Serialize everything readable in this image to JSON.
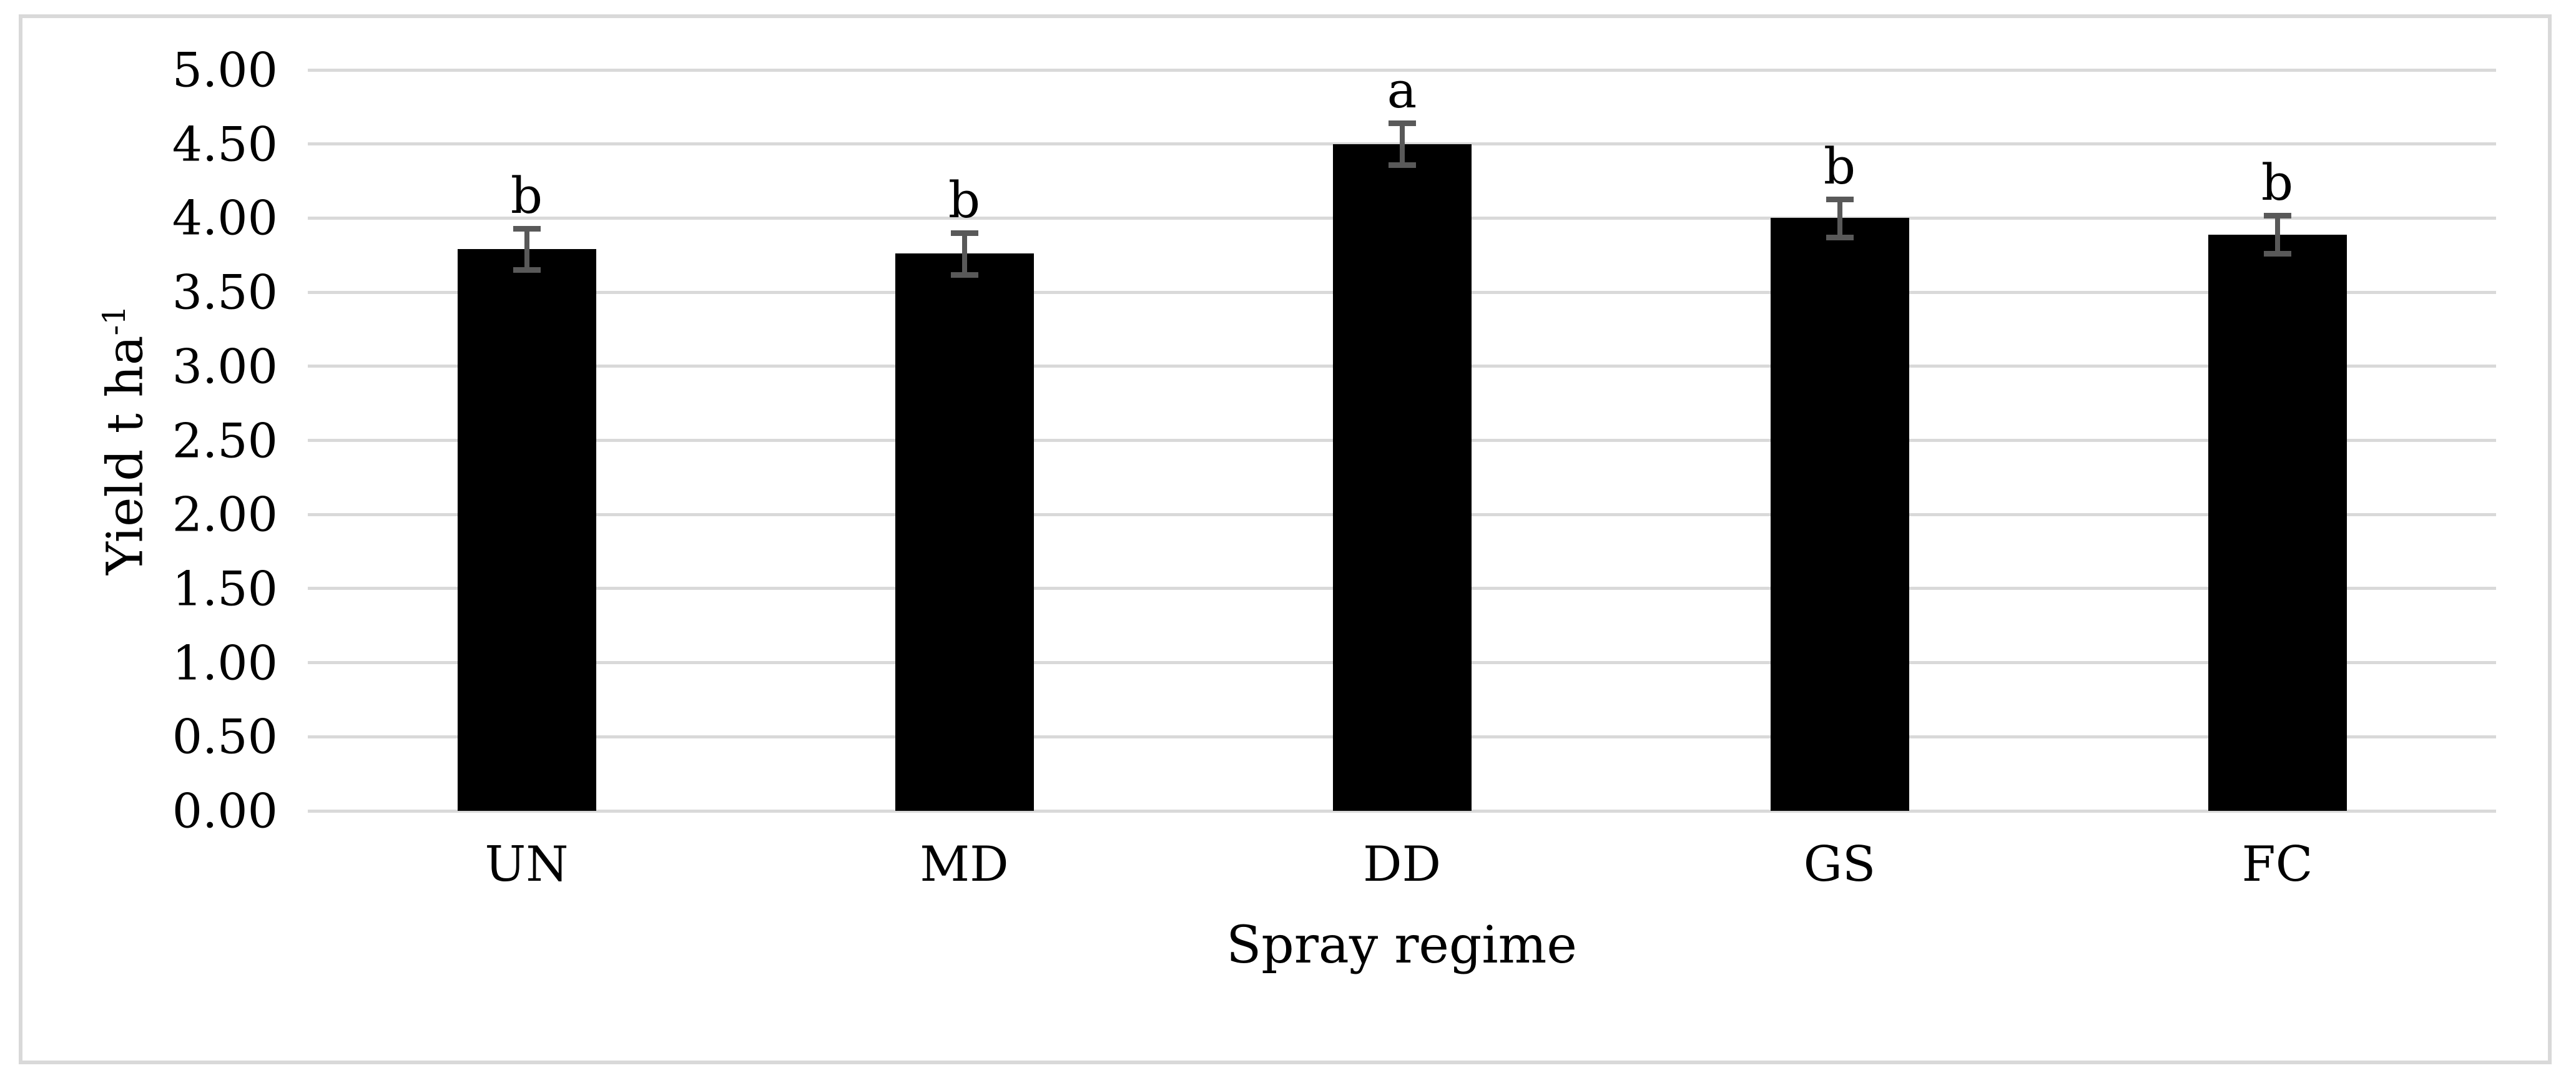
{
  "figure": {
    "colors": {
      "bar": "#000000",
      "error_bar": "#595959",
      "gridline": "#d9d9d9",
      "frame": "#d9d9d9",
      "text": "#000000",
      "background": "#ffffff"
    }
  },
  "chart_data": {
    "type": "bar",
    "categories": [
      "UN",
      "MD",
      "DD",
      "GS",
      "FC"
    ],
    "series": [
      {
        "name": "Yield",
        "values": [
          3.79,
          3.76,
          4.5,
          4.0,
          3.89
        ],
        "errors": [
          0.14,
          0.14,
          0.14,
          0.13,
          0.13
        ],
        "sig_letters": [
          "b",
          "b",
          "a",
          "b",
          "b"
        ]
      }
    ],
    "xlabel": "Spray regime",
    "ylabel": "Yield t ha⁻¹",
    "ylabel_parts": {
      "base": "Yield t ha",
      "exponent": "-1"
    },
    "ylim": [
      0,
      5
    ],
    "ytick_labels": [
      "5.00",
      "4.50",
      "4.00",
      "3.50",
      "3.00",
      "2.50",
      "2.00",
      "1.50",
      "1.00",
      "0.50",
      "0.00"
    ],
    "grid": true,
    "legend_position": "none"
  }
}
